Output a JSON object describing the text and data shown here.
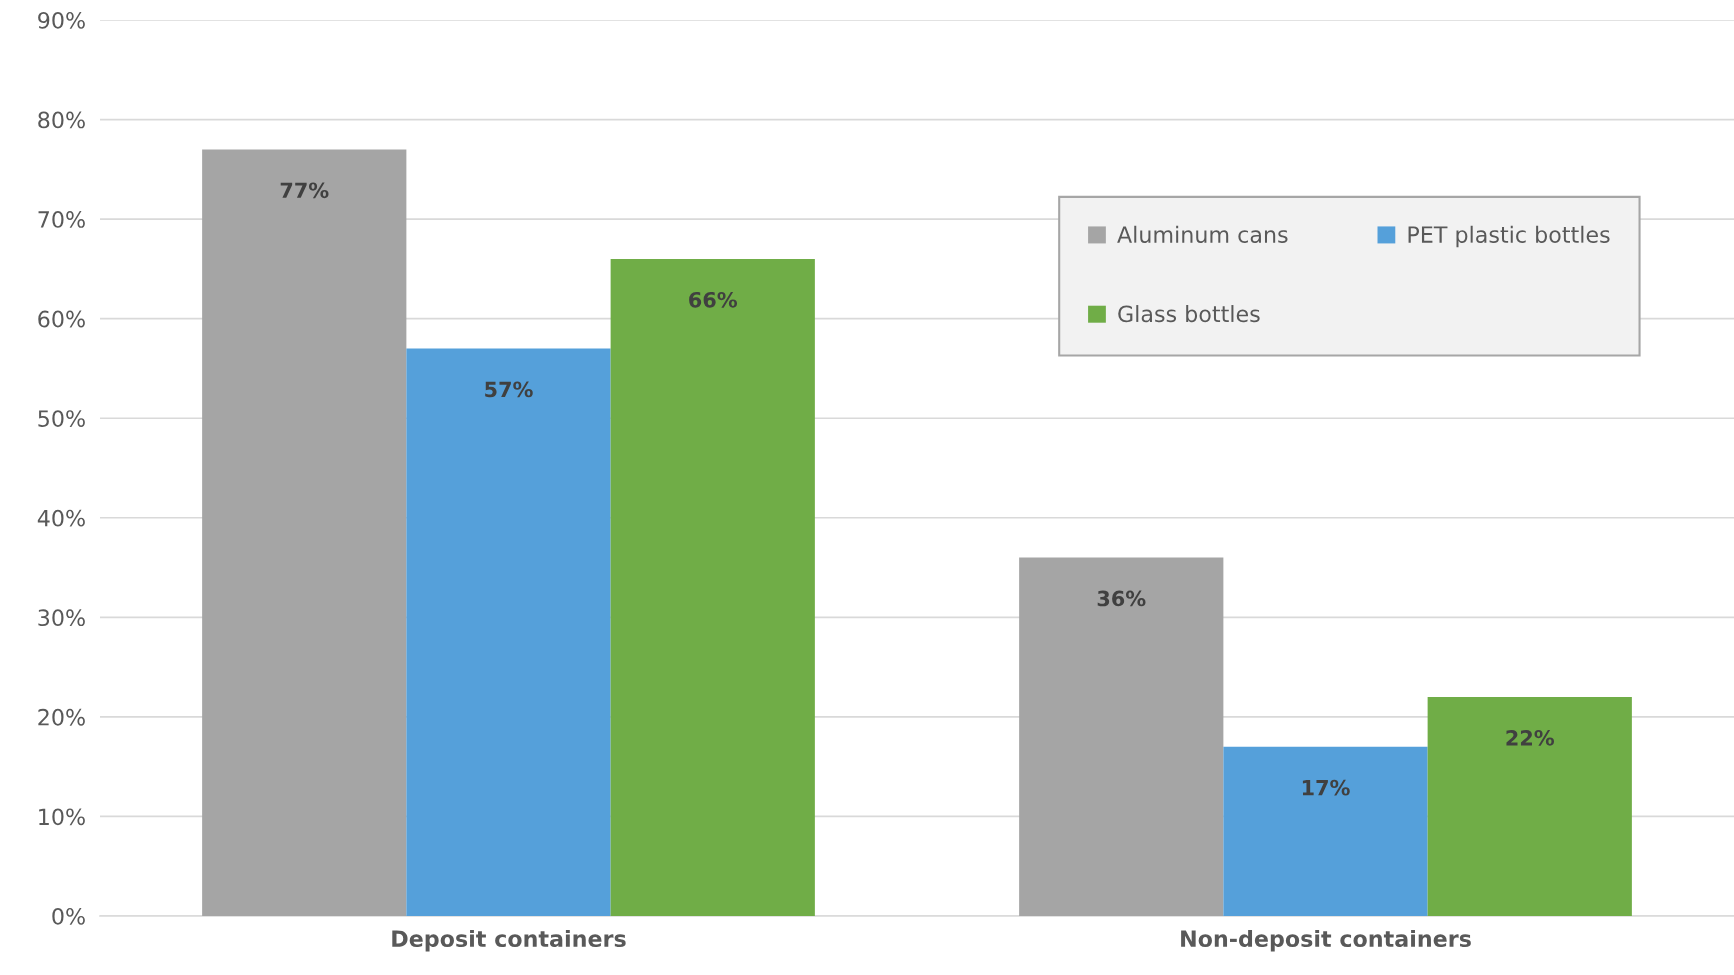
{
  "chart_data": {
    "type": "bar",
    "categories": [
      "Deposit containers",
      "Non-deposit containers"
    ],
    "series": [
      {
        "name": "Aluminum cans",
        "color": "#a5a5a5",
        "values": [
          77,
          36
        ],
        "value_labels": [
          "77%",
          "36%"
        ]
      },
      {
        "name": "PET plastic bottles",
        "color": "#55a0da",
        "values": [
          57,
          17
        ],
        "value_labels": [
          "57%",
          "17%"
        ]
      },
      {
        "name": "Glass bottles",
        "color": "#70ad47",
        "values": [
          66,
          22
        ],
        "value_labels": [
          "66%",
          "22%"
        ]
      }
    ],
    "ylim": [
      0,
      90
    ],
    "yticks": [
      {
        "value": 0,
        "label": "0%"
      },
      {
        "value": 10,
        "label": "10%"
      },
      {
        "value": 20,
        "label": "20%"
      },
      {
        "value": 30,
        "label": "30%"
      },
      {
        "value": 40,
        "label": "40%"
      },
      {
        "value": 50,
        "label": "50%"
      },
      {
        "value": 60,
        "label": "60%"
      },
      {
        "value": 70,
        "label": "70%"
      },
      {
        "value": 80,
        "label": "80%"
      },
      {
        "value": 90,
        "label": "90%"
      }
    ],
    "grid": "y",
    "legend": "top right"
  }
}
